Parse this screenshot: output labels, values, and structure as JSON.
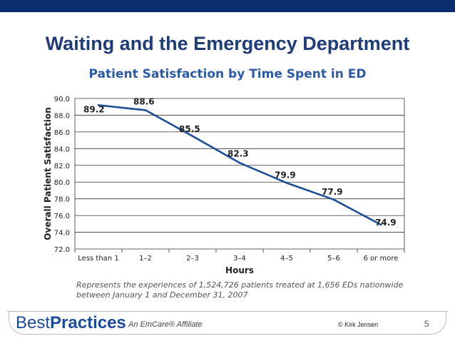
{
  "slide": {
    "title": "Waiting and the Emergency Department",
    "footnote": "Represents the experiences of 1,524,726 patients treated at 1,656 EDs nationwide between January 1 and December 31, 2007",
    "brand_part1": "Best",
    "brand_part2": "Practices",
    "affiliate": "An EmCare® Affiliate",
    "copyright": "© Kirk Jensen",
    "page_number": "5"
  },
  "chart_data": {
    "type": "line",
    "title": "Patient Satisfaction by Time Spent in ED",
    "xlabel": "Hours",
    "ylabel": "Overall Patient Satisfaction",
    "categories": [
      "Less than 1",
      "1–2",
      "2–3",
      "3–4",
      "4–5",
      "5–6",
      "6 or more"
    ],
    "series": [
      {
        "values": [
          89.2,
          88.6,
          85.5,
          82.3,
          79.9,
          77.9,
          74.9
        ]
      }
    ],
    "data_labels": [
      "89.2",
      "88.6",
      "85.5",
      "82.3",
      "79.9",
      "77.9",
      "74.9"
    ],
    "ylim": [
      72.0,
      90.0
    ],
    "yticks": [
      "72.0",
      "74.0",
      "76.0",
      "78.0",
      "80.0",
      "82.0",
      "84.0",
      "86.0",
      "88.0",
      "90.0"
    ],
    "grid": true,
    "line_color": "#1f4f96"
  }
}
